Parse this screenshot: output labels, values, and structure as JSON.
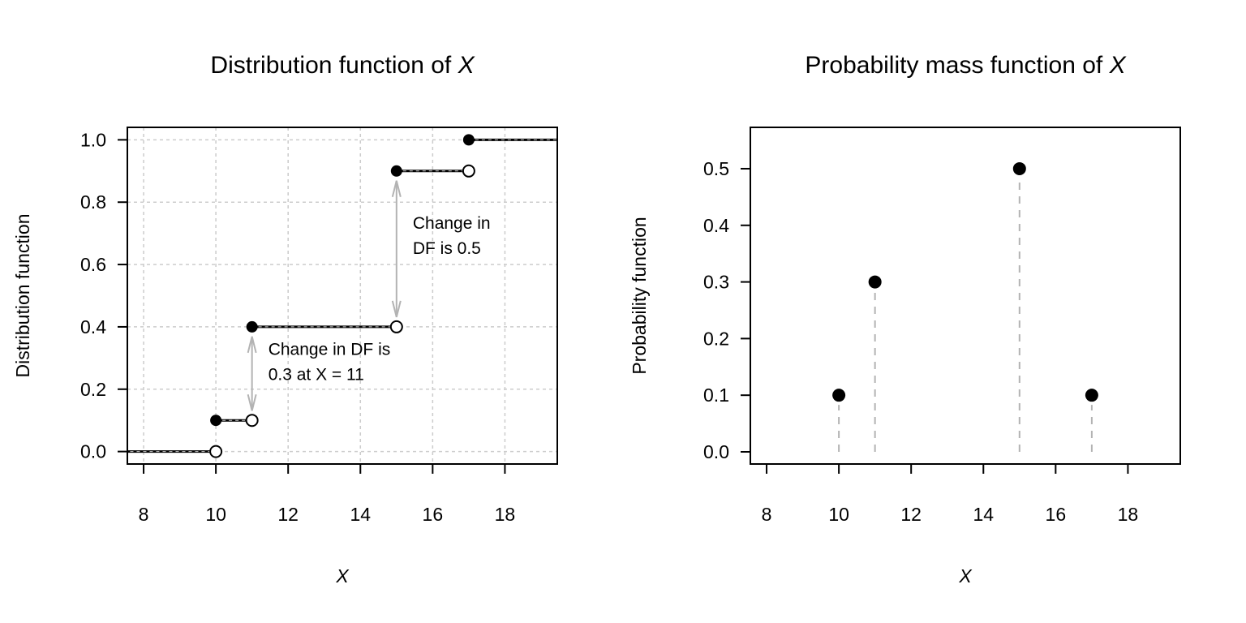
{
  "chart_data": [
    {
      "type": "line",
      "subtype": "step",
      "title": "Distribution function of",
      "title_var": "X",
      "xlabel": "X",
      "ylabel": "Distribution function",
      "xlim": [
        7.55,
        19.45
      ],
      "ylim": [
        -0.04,
        1.04
      ],
      "xticks": [
        8,
        10,
        12,
        14,
        16,
        18
      ],
      "yticks": [
        0.0,
        0.2,
        0.4,
        0.6,
        0.8,
        1.0
      ],
      "ytick_labels": [
        "0.0",
        "0.2",
        "0.4",
        "0.6",
        "0.8",
        "1.0"
      ],
      "grid": true,
      "steps": [
        {
          "x_from": null,
          "x_to": 10,
          "y": 0.0,
          "closed_left": false,
          "open_right": true
        },
        {
          "x_from": 10,
          "x_to": 11,
          "y": 0.1,
          "closed_left": true,
          "open_right": true
        },
        {
          "x_from": 11,
          "x_to": 15,
          "y": 0.4,
          "closed_left": true,
          "open_right": true
        },
        {
          "x_from": 15,
          "x_to": 17,
          "y": 0.9,
          "closed_left": true,
          "open_right": true
        },
        {
          "x_from": 17,
          "x_to": null,
          "y": 1.0,
          "closed_left": true,
          "open_right": false
        }
      ],
      "arrows": [
        {
          "x": 11,
          "y_from": 0.1,
          "y_to": 0.4
        },
        {
          "x": 15,
          "y_from": 0.4,
          "y_to": 0.9
        }
      ],
      "annotations": [
        {
          "x": 11.45,
          "y": 0.31,
          "lines": [
            "Change in DF is",
            "0.3 at X = 11"
          ]
        },
        {
          "x": 15.45,
          "y": 0.715,
          "lines": [
            "Change in",
            "DF is 0.5"
          ]
        }
      ],
      "colors": {
        "line": "#000000",
        "arrow": "#b3b3b3",
        "grid": "#cccccc"
      }
    },
    {
      "type": "scatter",
      "subtype": "lollipop",
      "title": "Probability mass function of",
      "title_var": "X",
      "xlabel": "X",
      "ylabel": "Probability function",
      "xlim": [
        7.55,
        19.45
      ],
      "ylim": [
        -0.0215,
        0.573
      ],
      "xticks": [
        8,
        10,
        12,
        14,
        16,
        18
      ],
      "yticks": [
        0.0,
        0.1,
        0.2,
        0.3,
        0.4,
        0.5
      ],
      "ytick_labels": [
        "0.0",
        "0.1",
        "0.2",
        "0.3",
        "0.4",
        "0.5"
      ],
      "grid": false,
      "x": [
        10,
        11,
        15,
        17
      ],
      "y": [
        0.1,
        0.3,
        0.5,
        0.1
      ],
      "colors": {
        "point": "#000000",
        "stem": "#b3b3b3"
      }
    }
  ]
}
